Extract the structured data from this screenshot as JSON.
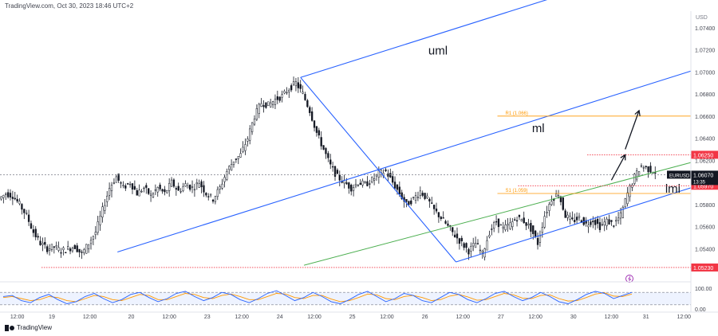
{
  "header": {
    "text": "TradingView.com, Oct 30, 2023 18:46 UTC+2"
  },
  "brand": {
    "text": "TradingView"
  },
  "chart_data": {
    "type": "candlestick",
    "symbol": "EURUSD",
    "currency_label": "USD",
    "ylim": [
      1.051,
      1.0755
    ],
    "yticks": [
      "1.07400",
      "1.07200",
      "1.07000",
      "1.06800",
      "1.06600",
      "1.06400",
      "1.06200",
      "1.05800",
      "1.05600",
      "1.05400"
    ],
    "xlim": [
      0,
      100
    ],
    "xticks": [
      {
        "label": "12:00",
        "x": 2.5
      },
      {
        "label": "19",
        "x": 7.5
      },
      {
        "label": "12:00",
        "x": 13
      },
      {
        "label": "20",
        "x": 19
      },
      {
        "label": "12:00",
        "x": 24.5
      },
      {
        "label": "23",
        "x": 30
      },
      {
        "label": "12:00",
        "x": 35
      },
      {
        "label": "24",
        "x": 40.5
      },
      {
        "label": "12:00",
        "x": 45.5
      },
      {
        "label": "25",
        "x": 51
      },
      {
        "label": "12:00",
        "x": 56
      },
      {
        "label": "26",
        "x": 61.5
      },
      {
        "label": "12:00",
        "x": 67
      },
      {
        "label": "27",
        "x": 72.5
      },
      {
        "label": "12:00",
        "x": 77.5
      },
      {
        "label": "30",
        "x": 83
      },
      {
        "label": "12:00",
        "x": 88.5
      },
      {
        "label": "31",
        "x": 93.5
      },
      {
        "label": "12:00",
        "x": 99
      }
    ],
    "close_path": [
      [
        0,
        1.0585
      ],
      [
        1,
        1.059
      ],
      [
        2,
        1.0588
      ],
      [
        3,
        1.058
      ],
      [
        4,
        1.057
      ],
      [
        5,
        1.0555
      ],
      [
        6,
        1.0545
      ],
      [
        7,
        1.054
      ],
      [
        8,
        1.0542
      ],
      [
        9,
        1.0538
      ],
      [
        10,
        1.054
      ],
      [
        11,
        1.0542
      ],
      [
        12,
        1.0535
      ],
      [
        13,
        1.0545
      ],
      [
        14,
        1.0555
      ],
      [
        15,
        1.0575
      ],
      [
        16,
        1.0595
      ],
      [
        17,
        1.0605
      ],
      [
        18,
        1.0595
      ],
      [
        19,
        1.06
      ],
      [
        20,
        1.059
      ],
      [
        21,
        1.0595
      ],
      [
        22,
        1.0588
      ],
      [
        23,
        1.0595
      ],
      [
        24,
        1.059
      ],
      [
        25,
        1.06
      ],
      [
        26,
        1.0592
      ],
      [
        27,
        1.0598
      ],
      [
        28,
        1.0595
      ],
      [
        29,
        1.06
      ],
      [
        30,
        1.059
      ],
      [
        31,
        1.0585
      ],
      [
        32,
        1.0595
      ],
      [
        33,
        1.061
      ],
      [
        34,
        1.062
      ],
      [
        35,
        1.0625
      ],
      [
        36,
        1.064
      ],
      [
        37,
        1.066
      ],
      [
        38,
        1.0672
      ],
      [
        39,
        1.067
      ],
      [
        40,
        1.0675
      ],
      [
        41,
        1.0678
      ],
      [
        42,
        1.0685
      ],
      [
        43,
        1.069
      ],
      [
        44,
        1.068
      ],
      [
        45,
        1.0665
      ],
      [
        46,
        1.0645
      ],
      [
        47,
        1.063
      ],
      [
        48,
        1.0615
      ],
      [
        49,
        1.0605
      ],
      [
        50,
        1.06
      ],
      [
        51,
        1.0595
      ],
      [
        52,
        1.06
      ],
      [
        53,
        1.0598
      ],
      [
        54,
        1.0602
      ],
      [
        55,
        1.0608
      ],
      [
        56,
        1.061
      ],
      [
        57,
        1.06
      ],
      [
        58,
        1.059
      ],
      [
        59,
        1.058
      ],
      [
        60,
        1.0585
      ],
      [
        61,
        1.0592
      ],
      [
        62,
        1.0585
      ],
      [
        63,
        1.0575
      ],
      [
        64,
        1.0568
      ],
      [
        65,
        1.056
      ],
      [
        66,
        1.0552
      ],
      [
        67,
        1.0545
      ],
      [
        68,
        1.0538
      ],
      [
        69,
        1.0545
      ],
      [
        70,
        1.0535
      ],
      [
        71,
        1.0555
      ],
      [
        72,
        1.0565
      ],
      [
        73,
        1.0558
      ],
      [
        74,
        1.0562
      ],
      [
        75,
        1.0568
      ],
      [
        76,
        1.0565
      ],
      [
        77,
        1.0558
      ],
      [
        78,
        1.0545
      ],
      [
        79,
        1.057
      ],
      [
        80,
        1.0585
      ],
      [
        81,
        1.059
      ],
      [
        82,
        1.057
      ],
      [
        83,
        1.0565
      ],
      [
        84,
        1.0568
      ],
      [
        85,
        1.0562
      ],
      [
        86,
        1.0566
      ],
      [
        87,
        1.056
      ],
      [
        88,
        1.0565
      ],
      [
        89,
        1.0562
      ],
      [
        90,
        1.057
      ],
      [
        91,
        1.059
      ],
      [
        92,
        1.0605
      ],
      [
        93,
        1.0615
      ],
      [
        94,
        1.0612
      ],
      [
        95,
        1.061
      ]
    ],
    "pitchfork": {
      "pivots": [
        {
          "x": 17,
          "y": 1.0537
        },
        {
          "x": 43.5,
          "y": 1.0695
        },
        {
          "x": 66,
          "y": 1.0528
        }
      ],
      "labels": {
        "upper": "uml",
        "median": "ml",
        "lower": "lml"
      },
      "color": "#2962ff"
    },
    "green_channel_line": {
      "from": {
        "x": 44,
        "y": 1.0525
      },
      "to": {
        "x": 100,
        "y": 1.0618
      },
      "color": "#4caf50"
    },
    "levels": [
      {
        "label": "1.06250",
        "value": 1.0625,
        "color": "#f23645",
        "style": "dotted",
        "from_x": 85
      },
      {
        "label": "1.05970",
        "value": 1.0597,
        "color": "#f23645",
        "style": "dotted",
        "from_x": 75
      },
      {
        "label": "1.05230",
        "value": 1.0523,
        "color": "#f23645",
        "style": "dotted",
        "from_x": 6
      }
    ],
    "pivot_levels": [
      {
        "label": "R1 (1.066)",
        "value": 1.066,
        "color": "#ff9800",
        "from_x": 72
      },
      {
        "label": "S1 (1.059)",
        "value": 1.059,
        "color": "#ff9800",
        "from_x": 72
      }
    ],
    "current_price": {
      "label": "EURUSD",
      "value": 1.0607,
      "price_text": "1.06070",
      "countdown": "13:35"
    },
    "arrows": [
      {
        "from": {
          "x": 88.5,
          "y": 1.0602
        },
        "to": {
          "x": 90.5,
          "y": 1.0625
        }
      },
      {
        "from": {
          "x": 90.5,
          "y": 1.063
        },
        "to": {
          "x": 92.5,
          "y": 1.0665
        }
      }
    ],
    "oscillator": {
      "ticks": [
        "100.00",
        "0.00"
      ],
      "band_upper": 80,
      "band_lower": 20,
      "k": [
        60,
        65,
        40,
        30,
        55,
        70,
        45,
        25,
        35,
        60,
        75,
        50,
        30,
        45,
        70,
        80,
        55,
        35,
        50,
        75,
        85,
        60,
        40,
        55,
        80,
        70,
        45,
        30,
        50,
        75,
        88,
        65,
        40,
        55,
        80,
        60,
        35,
        25,
        45,
        70,
        85,
        60,
        35,
        50,
        75,
        65,
        40,
        30,
        55,
        80,
        70,
        45,
        30,
        50,
        75,
        85,
        60,
        40,
        55,
        80,
        60,
        35,
        25,
        45,
        70,
        85,
        75,
        50,
        65,
        80
      ],
      "d": [
        55,
        60,
        50,
        40,
        45,
        60,
        55,
        40,
        35,
        50,
        65,
        60,
        45,
        40,
        55,
        70,
        65,
        45,
        45,
        60,
        75,
        70,
        55,
        50,
        65,
        72,
        60,
        45,
        45,
        60,
        75,
        72,
        55,
        50,
        65,
        65,
        48,
        35,
        40,
        55,
        72,
        68,
        50,
        45,
        60,
        65,
        55,
        40,
        45,
        62,
        70,
        58,
        42,
        45,
        60,
        75,
        68,
        52,
        50,
        65,
        68,
        50,
        38,
        40,
        55,
        72,
        78,
        62,
        60,
        72
      ]
    }
  }
}
